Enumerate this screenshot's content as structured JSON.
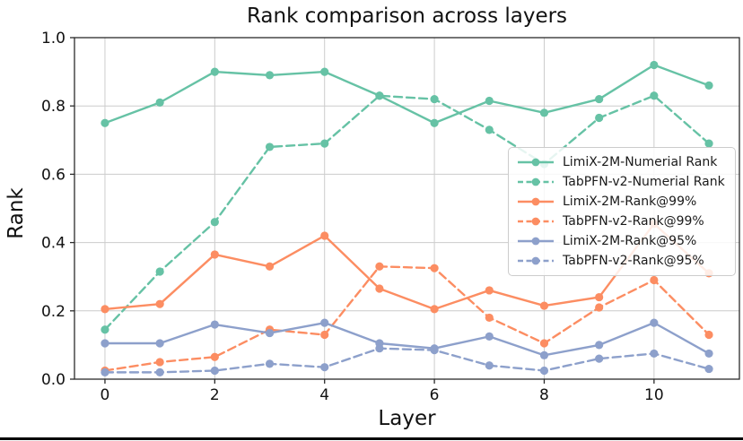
{
  "page": {
    "background": "#ffffff",
    "bottom_edge_color": "#000000"
  },
  "chart_data": {
    "type": "line",
    "title": "Rank comparison across layers",
    "xlabel": "Layer",
    "ylabel": "Rank",
    "x": [
      0,
      1,
      2,
      3,
      4,
      5,
      6,
      7,
      8,
      9,
      10,
      11
    ],
    "xticks": [
      0,
      2,
      4,
      6,
      8,
      10
    ],
    "yticks": [
      "0.0",
      "0.2",
      "0.4",
      "0.6",
      "0.8",
      "1.0"
    ],
    "xlim": [
      -0.555,
      11.555
    ],
    "ylim": [
      0.0,
      1.0
    ],
    "grid": true,
    "grid_color": "#cccccc",
    "spine_color": "#2b2b2b",
    "legend_position": "center-right",
    "series": [
      {
        "name": "LimiX-2M-Numerial Rank",
        "color": "#66c2a5",
        "style": "solid",
        "values": [
          0.75,
          0.81,
          0.9,
          0.89,
          0.9,
          0.83,
          0.75,
          0.815,
          0.78,
          0.82,
          0.92,
          0.86
        ]
      },
      {
        "name": "TabPFN-v2-Numerial Rank",
        "color": "#66c2a5",
        "style": "dashed",
        "values": [
          0.145,
          0.315,
          0.46,
          0.68,
          0.69,
          0.83,
          0.82,
          0.73,
          0.63,
          0.765,
          0.83,
          0.69
        ]
      },
      {
        "name": "LimiX-2M-Rank@99%",
        "color": "#fc8d62",
        "style": "solid",
        "values": [
          0.205,
          0.22,
          0.365,
          0.33,
          0.42,
          0.265,
          0.205,
          0.26,
          0.215,
          0.24,
          0.455,
          0.31
        ]
      },
      {
        "name": "TabPFN-v2-Rank@99%",
        "color": "#fc8d62",
        "style": "dashed",
        "values": [
          0.025,
          0.05,
          0.065,
          0.145,
          0.13,
          0.33,
          0.325,
          0.18,
          0.105,
          0.21,
          0.29,
          0.13
        ]
      },
      {
        "name": "LimiX-2M-Rank@95%",
        "color": "#8da0cb",
        "style": "solid",
        "values": [
          0.105,
          0.105,
          0.16,
          0.135,
          0.165,
          0.105,
          0.09,
          0.125,
          0.07,
          0.1,
          0.165,
          0.075
        ]
      },
      {
        "name": "TabPFN-v2-Rank@95%",
        "color": "#8da0cb",
        "style": "dashed",
        "values": [
          0.02,
          0.02,
          0.025,
          0.045,
          0.035,
          0.09,
          0.085,
          0.04,
          0.025,
          0.06,
          0.075,
          0.03
        ]
      }
    ]
  }
}
